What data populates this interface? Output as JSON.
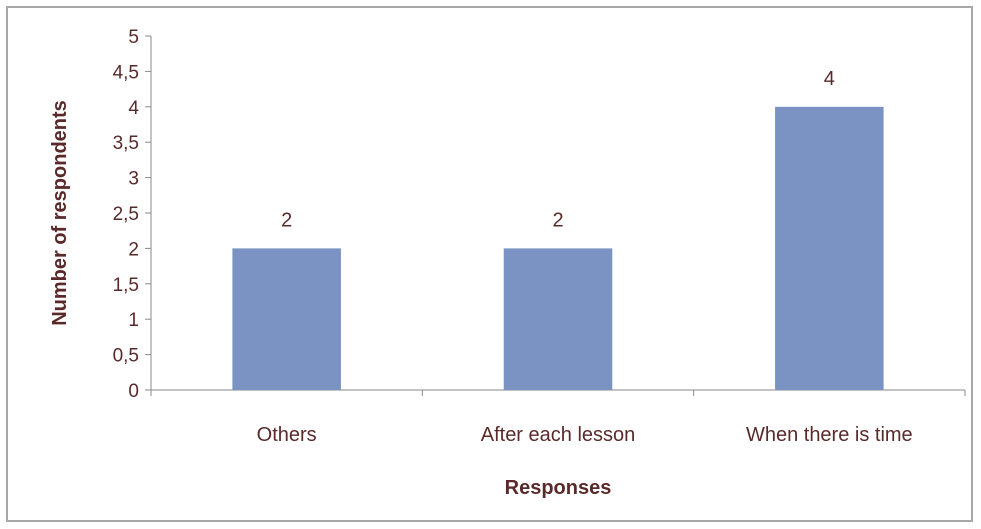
{
  "chart_data": {
    "type": "bar",
    "categories": [
      "Others",
      "After each lesson",
      "When there is time"
    ],
    "values": [
      2,
      2,
      4
    ],
    "data_labels": [
      "2",
      "2",
      "4"
    ],
    "yticks": [
      "0",
      "0,5",
      "1",
      "1,5",
      "2",
      "2,5",
      "3",
      "3,5",
      "4",
      "4,5",
      "5"
    ],
    "ylim": [
      0,
      5
    ],
    "xlabel": "Responses",
    "ylabel": "Number of respondents",
    "bar_color": "#7a93c3",
    "axis_color": "#8a8a8a",
    "text_color": "#5a2a2a",
    "grid": false,
    "legend": false
  }
}
